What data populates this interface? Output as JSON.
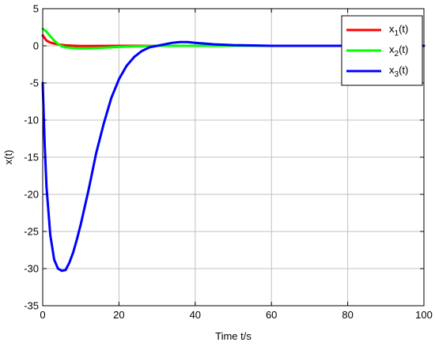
{
  "chart_data": {
    "type": "line",
    "title": "",
    "xlabel": "Time t/s",
    "ylabel": "x(t)",
    "xlim": [
      0,
      100
    ],
    "ylim": [
      -35,
      5
    ],
    "xticks": [
      0,
      20,
      40,
      60,
      80,
      100
    ],
    "yticks": [
      -35,
      -30,
      -25,
      -20,
      -15,
      -10,
      -5,
      0,
      5
    ],
    "grid": true,
    "legend_position": "top-right",
    "series": [
      {
        "name": "x1(t)",
        "legend": {
          "base": "x",
          "sub": "1",
          "suffix": "(t)"
        },
        "color": "#ff0000",
        "x": [
          0,
          1,
          2,
          3,
          4,
          5,
          6,
          8,
          10,
          15,
          20,
          30,
          100
        ],
        "y": [
          1.4,
          0.7,
          0.45,
          0.3,
          0.2,
          0.12,
          0.06,
          0.01,
          -0.02,
          -0.01,
          0,
          0,
          0
        ]
      },
      {
        "name": "x2(t)",
        "legend": {
          "base": "x",
          "sub": "2",
          "suffix": "(t)"
        },
        "color": "#00ff00",
        "x": [
          0,
          1,
          2,
          3,
          4,
          5,
          6,
          8,
          10,
          12,
          15,
          20,
          25,
          30,
          100
        ],
        "y": [
          2.3,
          1.9,
          1.3,
          0.7,
          0.25,
          -0.05,
          -0.2,
          -0.3,
          -0.35,
          -0.33,
          -0.28,
          -0.15,
          -0.05,
          0,
          0
        ]
      },
      {
        "name": "x3(t)",
        "legend": {
          "base": "x",
          "sub": "3",
          "suffix": "(t)"
        },
        "color": "#0000ff",
        "x": [
          0,
          0.5,
          1,
          2,
          3,
          4,
          5,
          6,
          7,
          8,
          9,
          10,
          12,
          14,
          16,
          18,
          20,
          22,
          24,
          26,
          28,
          30,
          32,
          34,
          36,
          38,
          40,
          45,
          50,
          55,
          60,
          70,
          100
        ],
        "y": [
          -5,
          -13,
          -19,
          -25.5,
          -28.8,
          -30,
          -30.3,
          -30.2,
          -29.2,
          -27.8,
          -26,
          -24,
          -19.5,
          -14.5,
          -10.5,
          -7,
          -4.5,
          -2.7,
          -1.5,
          -0.7,
          -0.2,
          0,
          0.2,
          0.4,
          0.5,
          0.5,
          0.4,
          0.2,
          0.1,
          0.05,
          0,
          0,
          0
        ]
      }
    ]
  }
}
